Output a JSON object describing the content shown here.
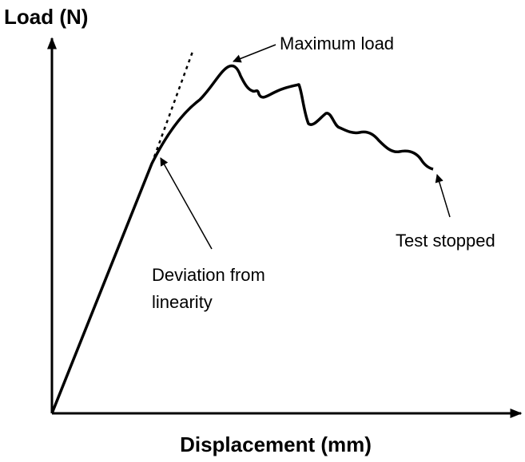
{
  "axes": {
    "y_label": "Load (N)",
    "x_label": "Displacement (mm)"
  },
  "annotations": {
    "maximum_load": "Maximum load",
    "deviation": [
      "Deviation from",
      "linearity"
    ],
    "test_stopped": "Test stopped"
  }
}
